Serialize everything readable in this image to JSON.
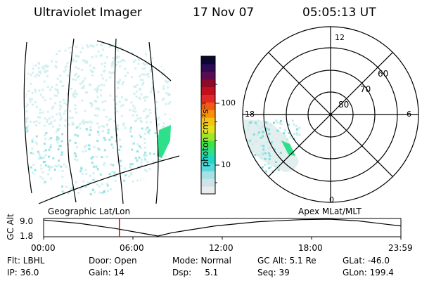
{
  "header": {
    "instrument": "Ultraviolet Imager",
    "date": "17 Nov 07",
    "time": "05:05:13 UT"
  },
  "colorbar": {
    "unit_label": "photon cm⁻²s⁻¹",
    "tick_labels": [
      "100",
      "10"
    ],
    "scale": "log",
    "colors": [
      "#e9ecec",
      "#cfe3e6",
      "#a7e1e5",
      "#59d9dc",
      "#22d6c6",
      "#2fe08b",
      "#3fe349",
      "#9fe52c",
      "#e2e021",
      "#f7c210",
      "#f79210",
      "#f25a12",
      "#e0272a",
      "#c0101c",
      "#8c0a2a",
      "#5a0c4e",
      "#2c0a56",
      "#0a0830"
    ]
  },
  "left_panel": {
    "label": "Geographic Lat/Lon",
    "colors": {
      "speckle": "#c8ecec",
      "speckle2": "#7edede",
      "bright": "#2fe08b"
    }
  },
  "right_panel": {
    "label": "Apex MLat/MLT",
    "mlt_labels": {
      "top": "12",
      "right": "6",
      "bottom": "0",
      "left": "18"
    },
    "lat_labels": [
      "60",
      "70",
      "80"
    ]
  },
  "timeline": {
    "axis_label": "GC Alt",
    "y_labels": [
      "9.0",
      "1.8"
    ],
    "x_labels": [
      "00:00",
      "06:00",
      "12:00",
      "18:00",
      "23:59"
    ],
    "marker_time": "05:05",
    "marker_color": "#e00000"
  },
  "info": {
    "flt": "Flt: LBHL",
    "ip": "IP: 36.0",
    "door": "Door: Open",
    "gain": "Gain: 14",
    "mode": "Mode: Normal",
    "dsp": "Dsp:     5.1",
    "gcalt": "GC Alt: 5.1 Re",
    "seq": "Seq: 39",
    "glat": "GLat: -46.0",
    "glon": "GLon: 199.4"
  }
}
